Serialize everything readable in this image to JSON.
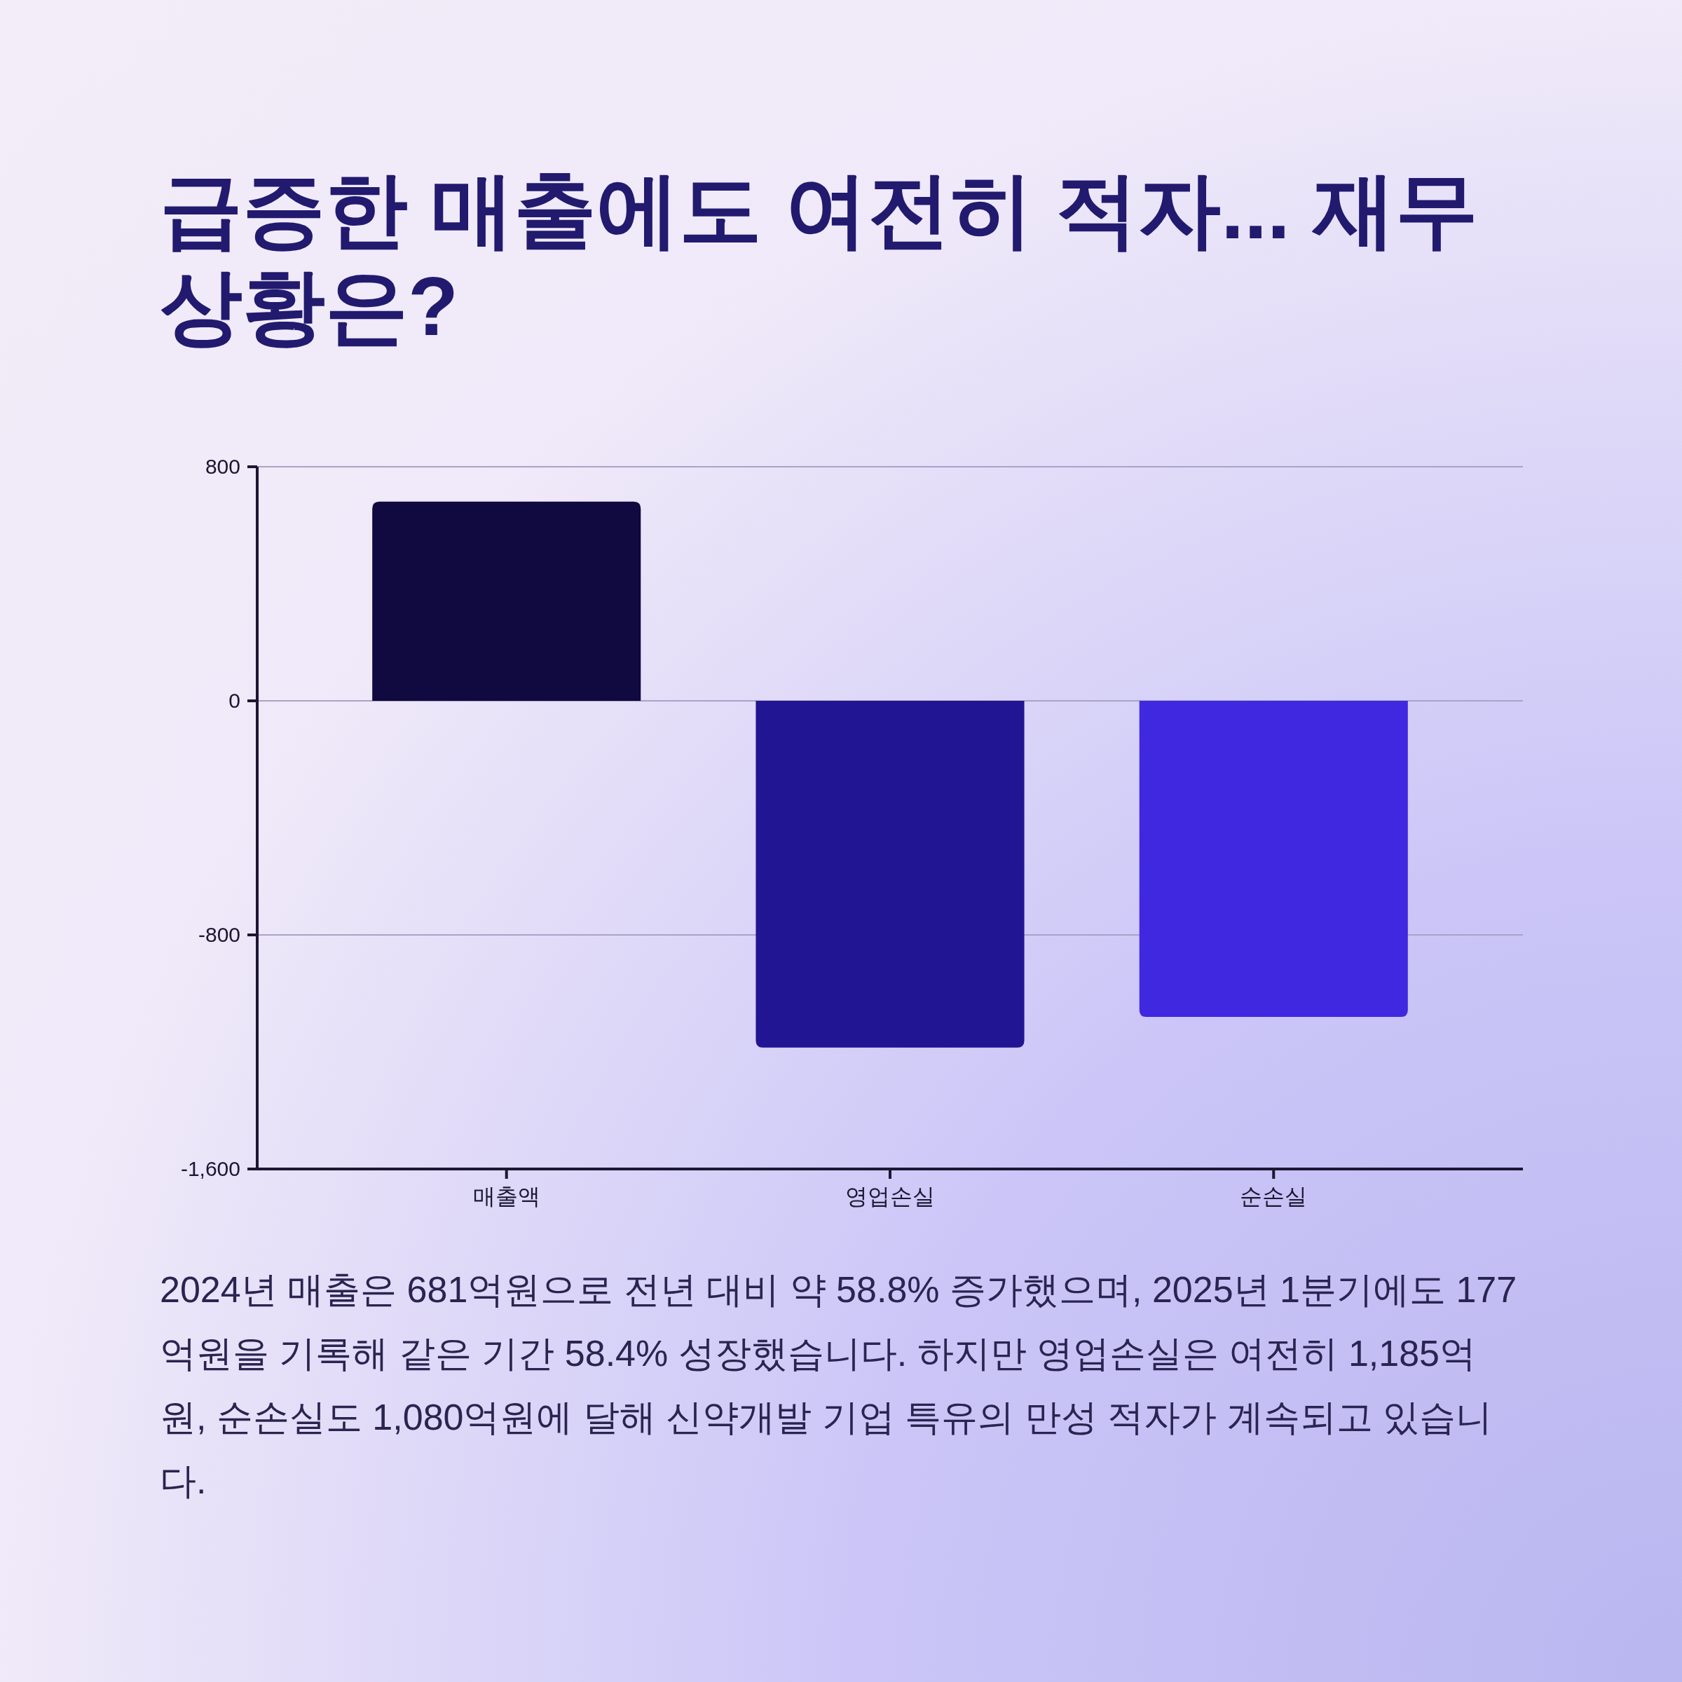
{
  "chart_data": {
    "type": "bar",
    "title": "급증한 매출에도 여전히 적자... 재무 상황은?",
    "categories": [
      "매출액",
      "영업손실",
      "순손실"
    ],
    "values": [
      681,
      -1185,
      -1080
    ],
    "colors": [
      "#100a40",
      "#211593",
      "#3f28e0"
    ],
    "ylim": [
      -1600,
      800
    ],
    "yticks": [
      800,
      0,
      -800,
      {
        "value": -1600,
        "label": "-1,600"
      }
    ],
    "grid": "y",
    "annotations": [
      "2024년 매출은 681억원으로 전년 대비 약 58.8% 증가했으며, 2025년 1분기에도 177억원을 기록해 같은 기간 58.4% 성장했습니다. 하지만 영업손실은 여전히 1,185억원, 순손실도 1,080억원에 달해 신약개발 기업 특유의 만성 적자가 계속되고 있습니다."
    ]
  }
}
